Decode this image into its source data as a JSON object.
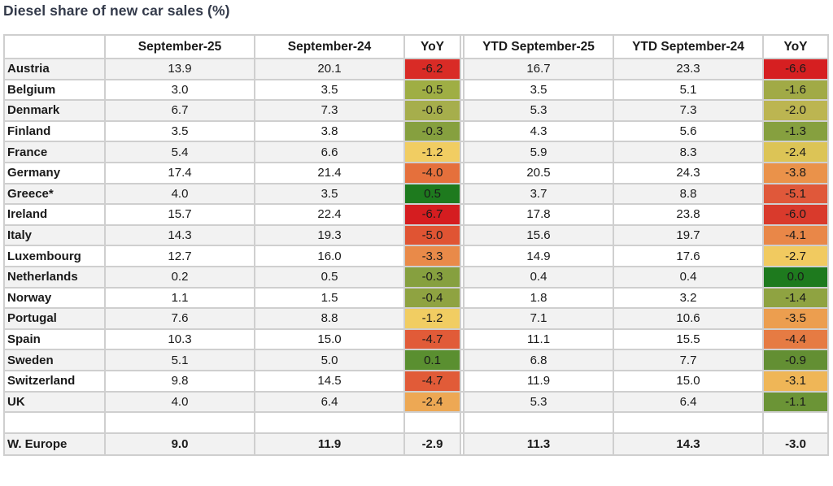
{
  "title": "Diesel share of new car sales (%)",
  "headers": [
    "",
    "September-25",
    "September-24",
    "YoY",
    "YTD September-25",
    "YTD September-24",
    "YoY"
  ],
  "rows": [
    {
      "country": "Austria",
      "m25": "13.9",
      "m24": "20.1",
      "yoy": "-6.2",
      "yoy_color": "#d92b26",
      "ytd25": "16.7",
      "ytd24": "23.3",
      "ytd_yoy": "-6.6",
      "ytd_yoy_color": "#d61f21"
    },
    {
      "country": "Belgium",
      "m25": "3.0",
      "m24": "3.5",
      "yoy": "-0.5",
      "yoy_color": "#9fae44",
      "ytd25": "3.5",
      "ytd24": "5.1",
      "ytd_yoy": "-1.6",
      "ytd_yoy_color": "#a1aa46"
    },
    {
      "country": "Denmark",
      "m25": "6.7",
      "m24": "7.3",
      "yoy": "-0.6",
      "yoy_color": "#a6ae4c",
      "ytd25": "5.3",
      "ytd24": "7.3",
      "ytd_yoy": "-2.0",
      "ytd_yoy_color": "#bcb551"
    },
    {
      "country": "Finland",
      "m25": "3.5",
      "m24": "3.8",
      "yoy": "-0.3",
      "yoy_color": "#86a03f",
      "ytd25": "4.3",
      "ytd24": "5.6",
      "ytd_yoy": "-1.3",
      "ytd_yoy_color": "#86a03f"
    },
    {
      "country": "France",
      "m25": "5.4",
      "m24": "6.6",
      "yoy": "-1.2",
      "yoy_color": "#f1cd62",
      "ytd25": "5.9",
      "ytd24": "8.3",
      "ytd_yoy": "-2.4",
      "ytd_yoy_color": "#dcc456"
    },
    {
      "country": "Germany",
      "m25": "17.4",
      "m24": "21.4",
      "yoy": "-4.0",
      "yoy_color": "#e5703c",
      "ytd25": "20.5",
      "ytd24": "24.3",
      "ytd_yoy": "-3.8",
      "ytd_yoy_color": "#ea924a"
    },
    {
      "country": "Greece*",
      "m25": "4.0",
      "m24": "3.5",
      "yoy": "0.5",
      "yoy_color": "#1e7a1e",
      "ytd25": "3.7",
      "ytd24": "8.8",
      "ytd_yoy": "-5.1",
      "ytd_yoy_color": "#e0583a"
    },
    {
      "country": "Ireland",
      "m25": "15.7",
      "m24": "22.4",
      "yoy": "-6.7",
      "yoy_color": "#d51d20",
      "ytd25": "17.8",
      "ytd24": "23.8",
      "ytd_yoy": "-6.0",
      "ytd_yoy_color": "#d93a2c"
    },
    {
      "country": "Italy",
      "m25": "14.3",
      "m24": "19.3",
      "yoy": "-5.0",
      "yoy_color": "#e05433",
      "ytd25": "15.6",
      "ytd24": "19.7",
      "ytd_yoy": "-4.1",
      "ytd_yoy_color": "#e98748"
    },
    {
      "country": "Luxembourg",
      "m25": "12.7",
      "m24": "16.0",
      "yoy": "-3.3",
      "yoy_color": "#e98a49",
      "ytd25": "14.9",
      "ytd24": "17.6",
      "ytd_yoy": "-2.7",
      "ytd_yoy_color": "#f1ca60"
    },
    {
      "country": "Netherlands",
      "m25": "0.2",
      "m24": "0.5",
      "yoy": "-0.3",
      "yoy_color": "#86a03f",
      "ytd25": "0.4",
      "ytd24": "0.4",
      "ytd_yoy": "0.0",
      "ytd_yoy_color": "#1e7a1e"
    },
    {
      "country": "Norway",
      "m25": "1.1",
      "m24": "1.5",
      "yoy": "-0.4",
      "yoy_color": "#8fa341",
      "ytd25": "1.8",
      "ytd24": "3.2",
      "ytd_yoy": "-1.4",
      "ytd_yoy_color": "#8fa341"
    },
    {
      "country": "Portugal",
      "m25": "7.6",
      "m24": "8.8",
      "yoy": "-1.2",
      "yoy_color": "#f1cd62",
      "ytd25": "7.1",
      "ytd24": "10.6",
      "ytd_yoy": "-3.5",
      "ytd_yoy_color": "#ec9e4f"
    },
    {
      "country": "Spain",
      "m25": "10.3",
      "m24": "15.0",
      "yoy": "-4.7",
      "yoy_color": "#e15b38",
      "ytd25": "11.1",
      "ytd24": "15.5",
      "ytd_yoy": "-4.4",
      "ytd_yoy_color": "#e67b43"
    },
    {
      "country": "Sweden",
      "m25": "5.1",
      "m24": "5.0",
      "yoy": "0.1",
      "yoy_color": "#5a8f30",
      "ytd25": "6.8",
      "ytd24": "7.7",
      "ytd_yoy": "-0.9",
      "ytd_yoy_color": "#638f33"
    },
    {
      "country": "Switzerland",
      "m25": "9.8",
      "m24": "14.5",
      "yoy": "-4.7",
      "yoy_color": "#e15b38",
      "ytd25": "11.9",
      "ytd24": "15.0",
      "ytd_yoy": "-3.1",
      "ytd_yoy_color": "#efb657"
    },
    {
      "country": "UK",
      "m25": "4.0",
      "m24": "6.4",
      "yoy": "-2.4",
      "yoy_color": "#eda854",
      "ytd25": "5.3",
      "ytd24": "6.4",
      "ytd_yoy": "-1.1",
      "ytd_yoy_color": "#6b9436"
    }
  ],
  "total": {
    "country": "W. Europe",
    "m25": "9.0",
    "m24": "11.9",
    "yoy": "-2.9",
    "ytd25": "11.3",
    "ytd24": "14.3",
    "ytd_yoy": "-3.0"
  }
}
